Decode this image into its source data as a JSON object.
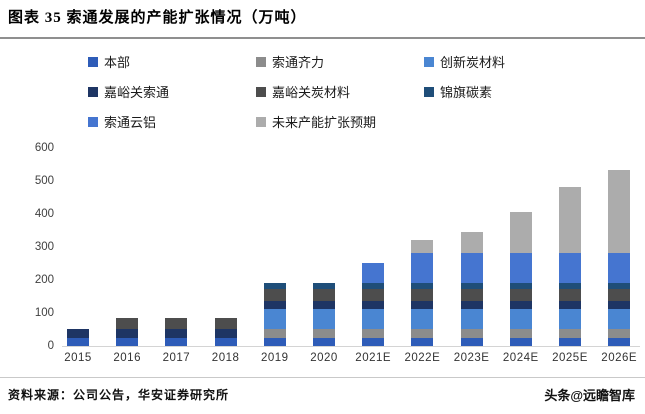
{
  "title": "图表 35 索通发展的产能扩张情况（万吨）",
  "footer": {
    "source": "资料来源：公司公告，华安证券研究所",
    "watermark": "头条@远瞻智库"
  },
  "chart_data": {
    "type": "bar",
    "subtype": "stacked",
    "title": "索通发展的产能扩张情况（万吨）",
    "xlabel": "",
    "ylabel": "",
    "ylim": [
      0,
      600
    ],
    "yticks": [
      0,
      100,
      200,
      300,
      400,
      500,
      600
    ],
    "grid": false,
    "legend_position": "top",
    "categories": [
      "2015",
      "2016",
      "2017",
      "2018",
      "2019",
      "2020",
      "2021E",
      "2022E",
      "2023E",
      "2024E",
      "2025E",
      "2026E"
    ],
    "series": [
      {
        "name": "本部",
        "color": "#2E5CB8",
        "values": [
          25.5,
          25.5,
          25.5,
          25.5,
          25.5,
          25.5,
          25.5,
          25.5,
          25.5,
          25.5,
          25.5,
          25.5
        ]
      },
      {
        "name": "索通齐力",
        "color": "#8C8C8C",
        "values": [
          0,
          0,
          0,
          0,
          26,
          26,
          26,
          26,
          26,
          26,
          26,
          26
        ]
      },
      {
        "name": "创新炭材料",
        "color": "#4A86D2",
        "values": [
          0,
          0,
          0,
          0,
          60,
          60,
          60,
          60,
          60,
          60,
          60,
          60
        ]
      },
      {
        "name": "嘉峪关索通",
        "color": "#1E3564",
        "values": [
          25.5,
          25.5,
          25.5,
          25.5,
          25.5,
          25.5,
          25.5,
          25.5,
          25.5,
          25.5,
          25.5,
          25.5
        ]
      },
      {
        "name": "嘉峪关炭材料",
        "color": "#4D4D4D",
        "values": [
          0,
          35,
          35,
          35,
          35,
          35,
          35,
          35,
          35,
          35,
          35,
          35
        ]
      },
      {
        "name": "锦旗碳素",
        "color": "#1F4E79",
        "values": [
          0,
          0,
          0,
          0,
          20,
          20,
          20,
          20,
          20,
          20,
          20,
          20
        ]
      },
      {
        "name": "索通云铝",
        "color": "#4575D0",
        "values": [
          0,
          0,
          0,
          0,
          0,
          0,
          60,
          90,
          90,
          90,
          90,
          90
        ]
      },
      {
        "name": "未来产能扩张预期",
        "color": "#ACACAC",
        "values": [
          0,
          0,
          0,
          0,
          0,
          0,
          0,
          40,
          65,
          125,
          200,
          250
        ]
      }
    ]
  }
}
